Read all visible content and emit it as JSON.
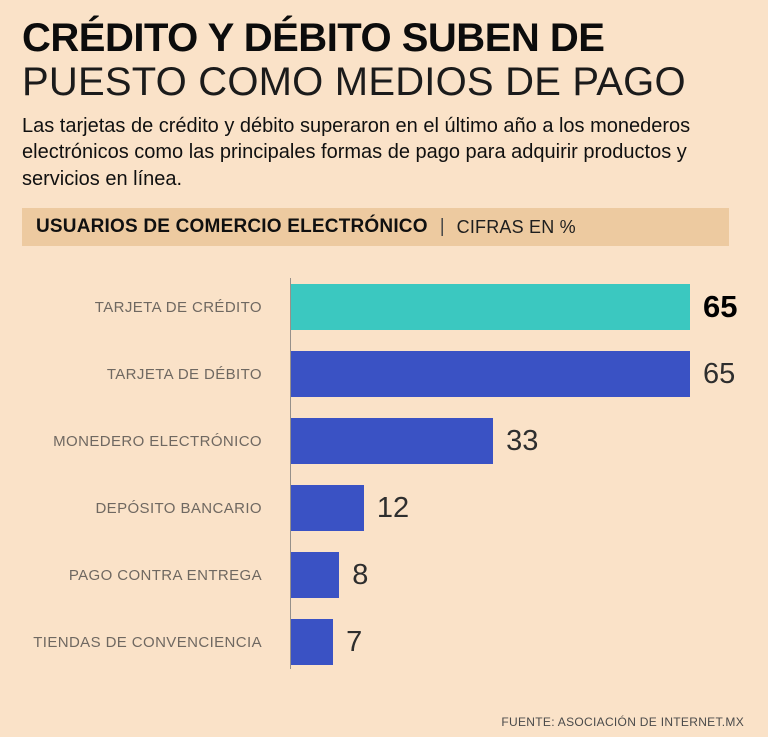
{
  "page": {
    "background_color": "#fae2c8",
    "section_bar_color": "#edcaa0",
    "accent_teal": "#3bc8c0",
    "accent_blue": "#3a52c4"
  },
  "header": {
    "title_line1": "CRÉDITO Y DÉBITO SUBEN DE",
    "title_line2": "PUESTO COMO MEDIOS DE PAGO",
    "description": "Las tarjetas de crédito y débito superaron en el último año a los monederos electrónicos como las principales formas de pago para adquirir productos y servicios en línea."
  },
  "section_bar": {
    "label": "USUARIOS DE COMERCIO ELECTRÓNICO",
    "separator": "|",
    "unit": "CIFRAS EN %"
  },
  "chart_data": {
    "type": "bar",
    "orientation": "horizontal",
    "title": "USUARIOS DE COMERCIO ELECTRÓNICO | CIFRAS EN %",
    "categories": [
      "TARJETA DE CRÉDITO",
      "TARJETA DE DÉBITO",
      "MONEDERO ELECTRÓNICO",
      "DEPÓSITO BANCARIO",
      "PAGO CONTRA ENTREGA",
      "TIENDAS DE CONVENCIENCIA"
    ],
    "values": [
      65,
      65,
      33,
      12,
      8,
      7
    ],
    "bar_colors": [
      "#3bc8c0",
      "#3a52c4",
      "#3a52c4",
      "#3a52c4",
      "#3a52c4",
      "#3a52c4"
    ],
    "value_bold": [
      true,
      false,
      false,
      false,
      false,
      false
    ],
    "xlim": [
      0,
      65
    ],
    "unit": "%",
    "grid": false,
    "legend": false
  },
  "footer": {
    "source": "FUENTE: ASOCIACIÓN DE INTERNET.MX"
  }
}
